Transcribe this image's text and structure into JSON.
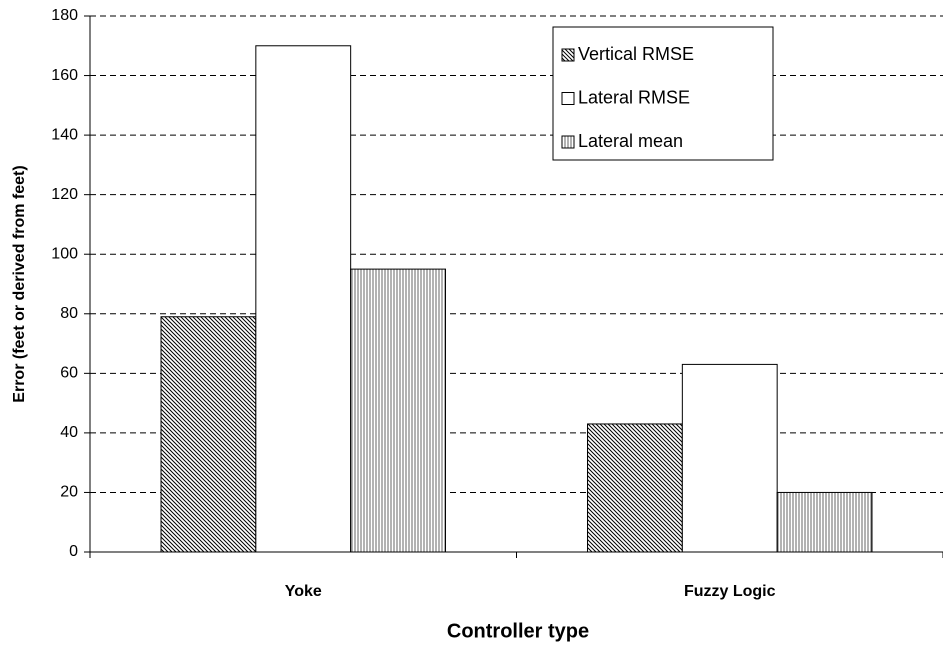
{
  "chart_data": {
    "type": "bar",
    "y_label": "Error (feet or derived from feet)",
    "x_label": "Controller type",
    "categories": [
      "Yoke",
      "Fuzzy Logic"
    ],
    "series": [
      {
        "name": "Vertical RMSE",
        "color": "#000000",
        "pattern": "diagonal",
        "values": [
          79,
          43
        ]
      },
      {
        "name": "Lateral RMSE",
        "color": "#000000",
        "pattern": "none",
        "values": [
          170,
          63
        ]
      },
      {
        "name": "Lateral mean",
        "color": "#000000",
        "pattern": "vertical",
        "values": [
          95,
          20
        ]
      }
    ],
    "ylim": [
      0,
      180
    ],
    "yticks": [
      0,
      20,
      40,
      60,
      80,
      100,
      120,
      140,
      160,
      180
    ],
    "grid": true,
    "legend": "upper right"
  }
}
